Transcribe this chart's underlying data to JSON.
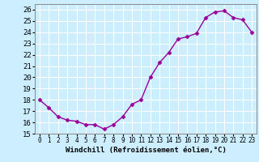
{
  "x": [
    0,
    1,
    2,
    3,
    4,
    5,
    6,
    7,
    8,
    9,
    10,
    11,
    12,
    13,
    14,
    15,
    16,
    17,
    18,
    19,
    20,
    21,
    22,
    23
  ],
  "y": [
    18.0,
    17.3,
    16.5,
    16.2,
    16.1,
    15.8,
    15.8,
    15.4,
    15.8,
    16.5,
    17.6,
    18.0,
    20.0,
    21.3,
    22.2,
    23.4,
    23.6,
    23.9,
    25.3,
    25.8,
    25.9,
    25.3,
    25.1,
    24.0
  ],
  "xlim": [
    -0.5,
    23.5
  ],
  "ylim": [
    15,
    26.5
  ],
  "yticks": [
    15,
    16,
    17,
    18,
    19,
    20,
    21,
    22,
    23,
    24,
    25,
    26
  ],
  "xlabel": "Windchill (Refroidissement éolien,°C)",
  "line_color": "#990099",
  "bg_color": "#cceeff",
  "grid_color": "#ffffff"
}
